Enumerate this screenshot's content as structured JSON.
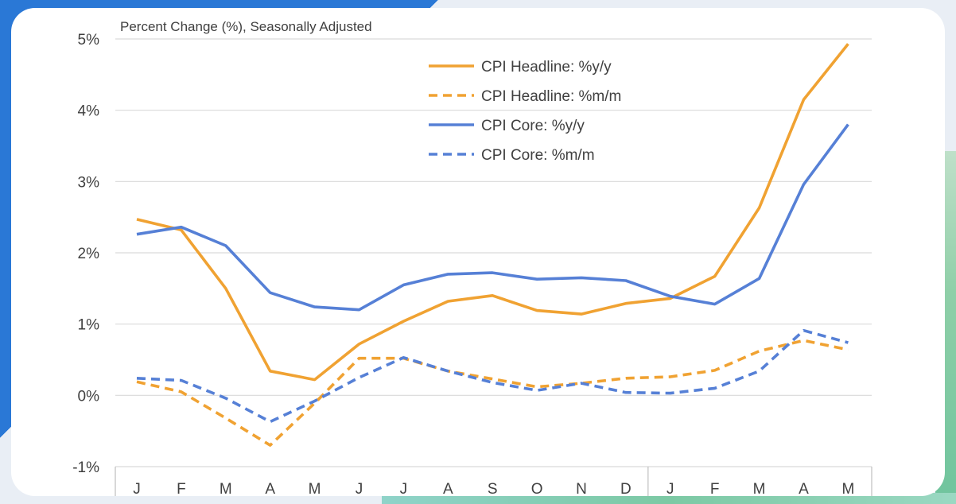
{
  "chart_data": {
    "type": "line",
    "title": "",
    "ylabel": "Percent Change (%), Seasonally Adjusted",
    "xlabel": "",
    "categories": [
      "J",
      "F",
      "M",
      "A",
      "M",
      "J",
      "J",
      "A",
      "S",
      "O",
      "N",
      "D",
      "J",
      "F",
      "M",
      "A",
      "M"
    ],
    "ylim": [
      -1,
      5
    ],
    "y_ticks": [
      5,
      4,
      3,
      2,
      1,
      0,
      -1
    ],
    "y_tick_labels": [
      "5%",
      "4%",
      "3%",
      "2%",
      "1%",
      "0%",
      "-1%"
    ],
    "grid": true,
    "legend_position": "top-right",
    "series": [
      {
        "name": "CPI Headline:  %y/y",
        "color": "#f0a232",
        "dashed": false,
        "values": [
          2.47,
          2.32,
          1.5,
          0.34,
          0.22,
          0.72,
          1.04,
          1.32,
          1.4,
          1.19,
          1.14,
          1.29,
          1.36,
          1.67,
          2.63,
          4.15,
          4.93
        ]
      },
      {
        "name": "CPI Headline:  %m/m",
        "color": "#f0a232",
        "dashed": true,
        "values": [
          0.19,
          0.05,
          -0.32,
          -0.7,
          -0.11,
          0.52,
          0.52,
          0.34,
          0.23,
          0.12,
          0.17,
          0.24,
          0.26,
          0.35,
          0.62,
          0.77,
          0.64
        ]
      },
      {
        "name": "CPI Core:  %y/y",
        "color": "#5680d6",
        "dashed": false,
        "values": [
          2.26,
          2.36,
          2.1,
          1.44,
          1.24,
          1.2,
          1.55,
          1.7,
          1.72,
          1.63,
          1.65,
          1.61,
          1.39,
          1.28,
          1.64,
          2.96,
          3.8
        ]
      },
      {
        "name": "CPI Core:  %m/m",
        "color": "#5680d6",
        "dashed": true,
        "values": [
          0.24,
          0.21,
          -0.04,
          -0.37,
          -0.08,
          0.25,
          0.53,
          0.34,
          0.18,
          0.07,
          0.17,
          0.04,
          0.03,
          0.1,
          0.34,
          0.91,
          0.74
        ]
      }
    ]
  }
}
